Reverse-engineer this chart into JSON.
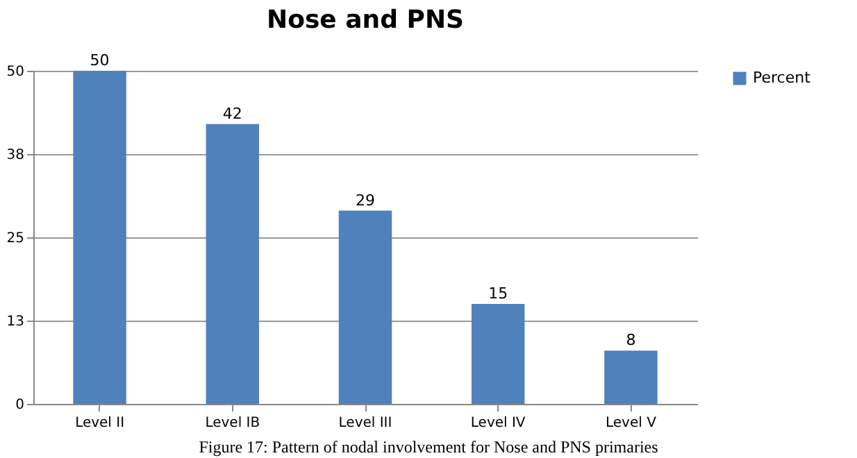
{
  "chart_data": {
    "type": "bar",
    "title": "Nose and PNS",
    "categories": [
      "Level II",
      "Level IB",
      "Level III",
      "Level IV",
      "Level V"
    ],
    "series": [
      {
        "name": "Percent",
        "color": "#4f81bd",
        "values": [
          50,
          42,
          29,
          15,
          8
        ]
      }
    ],
    "ylim": [
      0,
      50
    ],
    "yticks": [
      0,
      {
        "value": 12.5,
        "label": "13"
      },
      25,
      {
        "value": 37.5,
        "label": "38"
      },
      50
    ],
    "grid": "y",
    "legend": "right",
    "data_labels": true,
    "annotations": [
      "Figure 17: Pattern of nodal involvement for Nose and PNS primaries"
    ]
  }
}
